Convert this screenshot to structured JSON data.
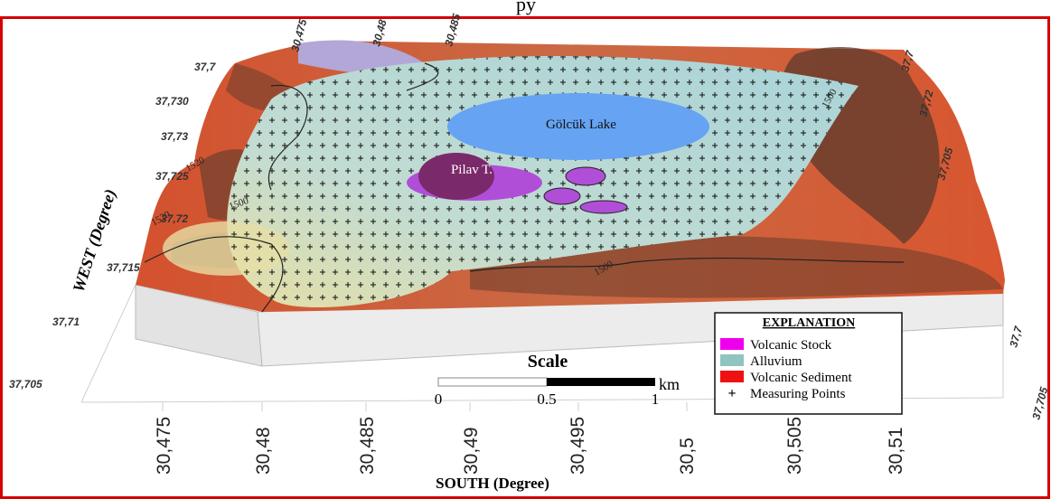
{
  "header": {
    "title": "py"
  },
  "axes": {
    "west_label": "WEST (Degree)",
    "south_label": "SOUTH (Degree)",
    "west_ticks": [
      "37,7",
      "37,730",
      "37,73",
      "37,725",
      "37,72",
      "37,715",
      "37,71",
      "37,705"
    ],
    "east_ticks": [
      "37,7",
      "37,72",
      "37,705",
      "37,7",
      "37,705"
    ],
    "top_ticks": [
      "30,475",
      "30,48",
      "30,485"
    ],
    "south_ticks": [
      "30,475",
      "30,48",
      "30,485",
      "30,49",
      "30,495",
      "30,5",
      "30,505",
      "30,51"
    ]
  },
  "map_labels": {
    "lake": "Gölcük Lake",
    "peak": "Pilav T.",
    "contours": [
      "1520",
      "1520",
      "1500",
      "1500",
      "1500"
    ]
  },
  "scale": {
    "title": "Scale",
    "ticks": [
      "0",
      "0.5",
      "1"
    ],
    "unit": "km"
  },
  "legend": {
    "title": "EXPLANATION",
    "items": [
      {
        "label": "Volcanic Stock",
        "color": "#ee00ee"
      },
      {
        "label": "Alluvium",
        "color": "#8fc4c0"
      },
      {
        "label": "Volcanic Sediment",
        "color": "#ee1111"
      },
      {
        "label": "Measuring Points",
        "symbol": "+"
      }
    ]
  }
}
